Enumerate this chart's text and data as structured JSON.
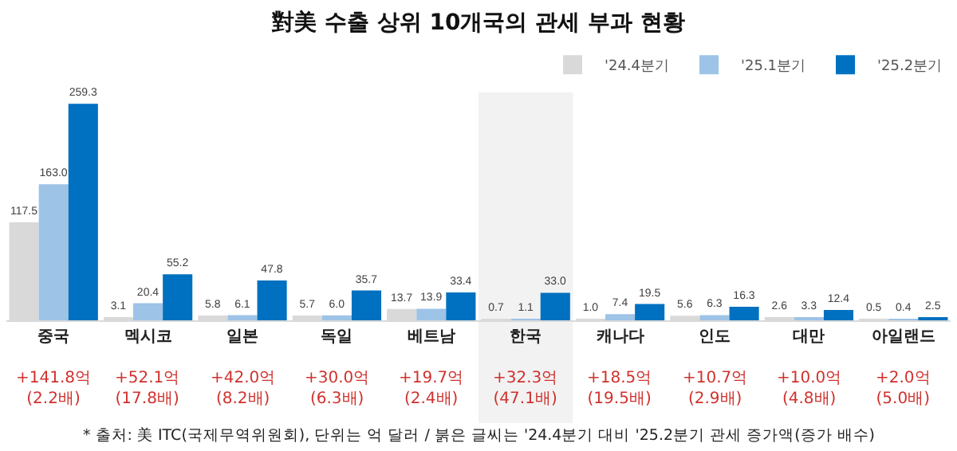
{
  "chart_data": {
    "type": "bar",
    "title": "對美 수출 상위 10개국의 관세 부과 현황",
    "categories": [
      "중국",
      "멕시코",
      "일본",
      "독일",
      "베트남",
      "한국",
      "캐나다",
      "인도",
      "대만",
      "아일랜드"
    ],
    "series": [
      {
        "name": "'24.4분기",
        "color": "#d9d9d9",
        "values": [
          117.5,
          3.1,
          5.8,
          5.7,
          13.7,
          0.7,
          1.0,
          5.6,
          2.6,
          0.5
        ],
        "value_labels": [
          "117.5",
          "3.1",
          "5.8",
          "5.7",
          "13.7",
          "0.7",
          "1.0",
          "5.6",
          "2.6",
          "0.5"
        ]
      },
      {
        "name": "'25.1분기",
        "color": "#9dc3e6",
        "values": [
          163.0,
          20.4,
          6.1,
          6.0,
          13.9,
          1.1,
          7.4,
          6.3,
          3.3,
          0.4
        ],
        "value_labels": [
          "163.0",
          "20.4",
          "6.1",
          "6.0",
          "13.9",
          "1.1",
          "7.4",
          "6.3",
          "3.3",
          "0.4"
        ]
      },
      {
        "name": "'25.2분기",
        "color": "#0070c0",
        "values": [
          259.3,
          55.2,
          47.8,
          35.7,
          33.4,
          33.0,
          19.5,
          16.3,
          12.4,
          2.5
        ],
        "value_labels": [
          "259.3",
          "55.2",
          "47.8",
          "35.7",
          "33.4",
          "33.0",
          "19.5",
          "16.3",
          "12.4",
          "2.5"
        ]
      }
    ],
    "tick_labels": "x",
    "legend": "top right",
    "grid": false,
    "bands": [
      {
        "axis": "x",
        "from": "한국",
        "to": "한국",
        "color": "#f2f2f2"
      }
    ],
    "annotations": [
      "+141.8억\n(2.2배)",
      "+52.1억\n(17.8배)",
      "+42.0억\n(8.2배)",
      "+30.0억\n(6.3배)",
      "+19.7억\n(2.4배)",
      "+32.3억\n(47.1배)",
      "+18.5억\n(19.5배)",
      "+10.7억\n(2.9배)",
      "+10.0억\n(4.8배)",
      "+2.0억\n(5.0배)",
      "* 출처: 美 ITC(국제무역위원회), 단위는 억 달러 / 붉은 글씨는 '24.4분기 대비 '25.2분기 관세 증가액(증가 배수)"
    ]
  }
}
